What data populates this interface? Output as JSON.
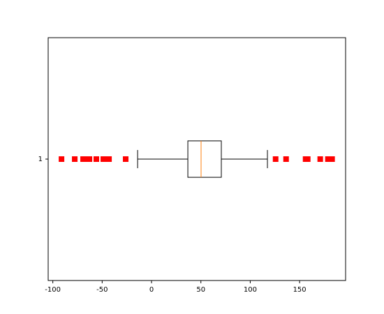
{
  "chart_data": {
    "type": "boxplot",
    "orientation": "horizontal",
    "categories": [
      "1"
    ],
    "boxes": [
      {
        "whisker_low": -14.1,
        "q1": 36.8,
        "median": 50.2,
        "q3": 70.7,
        "whisker_high": 117.4,
        "outliers": [
          -91.2,
          -77.8,
          -69.3,
          -65.8,
          -62.9,
          -55.9,
          -48.8,
          -46.0,
          -43.1,
          -26.2,
          125.7,
          136.3,
          156.1,
          158.2,
          170.9,
          178.7,
          180.8,
          182.9
        ]
      }
    ],
    "box_color": "#000000",
    "median_color": "#ff7f0e",
    "outlier_color": "#ff0000",
    "xlim": [
      -104.7,
      196.6
    ],
    "xticks": [
      -100,
      -50,
      0,
      50,
      100,
      150
    ]
  }
}
